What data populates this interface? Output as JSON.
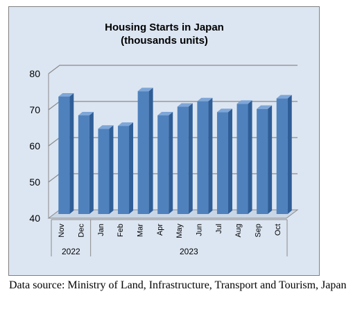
{
  "chart_data": {
    "type": "bar",
    "title": "Housing Starts in Japan",
    "subtitle": "(thousands units)",
    "categories": [
      "Nov",
      "Dec",
      "Jan",
      "Feb",
      "Mar",
      "Apr",
      "May",
      "Jun",
      "Jul",
      "Aug",
      "Sep",
      "Oct"
    ],
    "groups": [
      {
        "label": "2022",
        "count": 2
      },
      {
        "label": "2023",
        "count": 10
      }
    ],
    "values": [
      72.5,
      67.3,
      63.6,
      64.4,
      74.0,
      67.3,
      69.7,
      71.2,
      68.2,
      70.5,
      69.1,
      72.0
    ],
    "ylim": [
      40,
      80
    ],
    "yticks": [
      40,
      50,
      60,
      70,
      80
    ],
    "grid": true,
    "bar_color": "#4f81bd",
    "background": "#dce6f2"
  },
  "source_note": "Data source: Ministry of Land, Infrastructure, Transport and Tourism, Japan"
}
